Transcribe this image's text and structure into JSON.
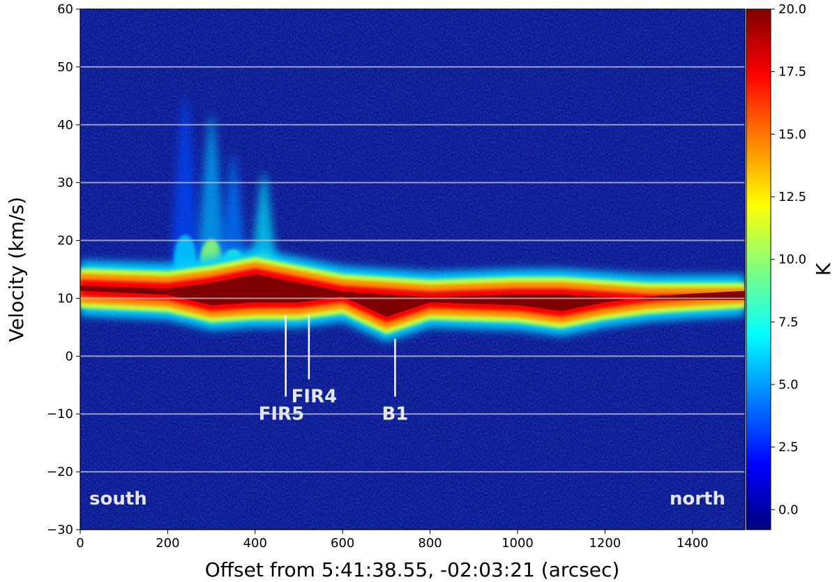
{
  "chart_data": {
    "type": "heatmap",
    "xlabel": "Offset from 5:41:38.55, -02:03:21 (arcsec)",
    "ylabel": "Velocity (km/s)",
    "xlim": [
      0,
      1520
    ],
    "ylim": [
      -30,
      60
    ],
    "x_ticks": [
      "0",
      "200",
      "400",
      "600",
      "800",
      "1000",
      "1200",
      "1400"
    ],
    "y_ticks": [
      "−30",
      "−20",
      "−10",
      "0",
      "10",
      "20",
      "30",
      "40",
      "50",
      "60"
    ],
    "horizontal_gridlines_at": [
      -20,
      -10,
      0,
      10,
      20,
      30,
      40,
      50
    ],
    "colorbar": {
      "label": "K",
      "range": [
        -0.8,
        20.0
      ],
      "ticks": [
        "0.0",
        "2.5",
        "5.0",
        "7.5",
        "10.0",
        "12.5",
        "15.0",
        "17.5",
        "20.0"
      ],
      "colormap": "jet",
      "colors": [
        "#00007f",
        "#0000ff",
        "#007fff",
        "#00ffff",
        "#7fff7f",
        "#ffff00",
        "#ff7f00",
        "#ff0000",
        "#7f0000"
      ]
    },
    "emission_ridge": {
      "offset": [
        0,
        200,
        300,
        400,
        500,
        600,
        700,
        800,
        1000,
        1100,
        1200,
        1300,
        1400,
        1520
      ],
      "v_low": [
        9.5,
        8.8,
        7.0,
        7.5,
        7.5,
        8.5,
        5.0,
        7.5,
        7.0,
        6.0,
        7.5,
        8.5,
        9.0,
        9.5
      ],
      "v_high": [
        14.0,
        13.5,
        14.5,
        16.0,
        14.5,
        13.0,
        12.5,
        12.0,
        12.5,
        12.5,
        12.0,
        11.5,
        11.5,
        11.5
      ],
      "peak_K": 20.0
    },
    "outflows": [
      {
        "offset": 240,
        "v_top": 45,
        "peak_K": 6.0
      },
      {
        "offset": 300,
        "v_top": 42,
        "peak_K": 10.0
      },
      {
        "offset": 350,
        "v_top": 35,
        "peak_K": 8.0
      },
      {
        "offset": 420,
        "v_top": 32,
        "peak_K": 12.0
      }
    ],
    "annotations": [
      {
        "label": "FIR5",
        "offset": 470,
        "line_from": 7.0,
        "line_to": -7.0,
        "text_offset": 460,
        "text_v": -11.0
      },
      {
        "label": "FIR4",
        "offset": 523,
        "line_from": 7.0,
        "line_to": -4.0,
        "text_offset": 535,
        "text_v": -8.0
      },
      {
        "label": "B1",
        "offset": 720,
        "line_from": 3.0,
        "line_to": -7.0,
        "text_offset": 720,
        "text_v": -11.0
      }
    ],
    "corner_labels": {
      "left": "south",
      "right": "north"
    }
  }
}
